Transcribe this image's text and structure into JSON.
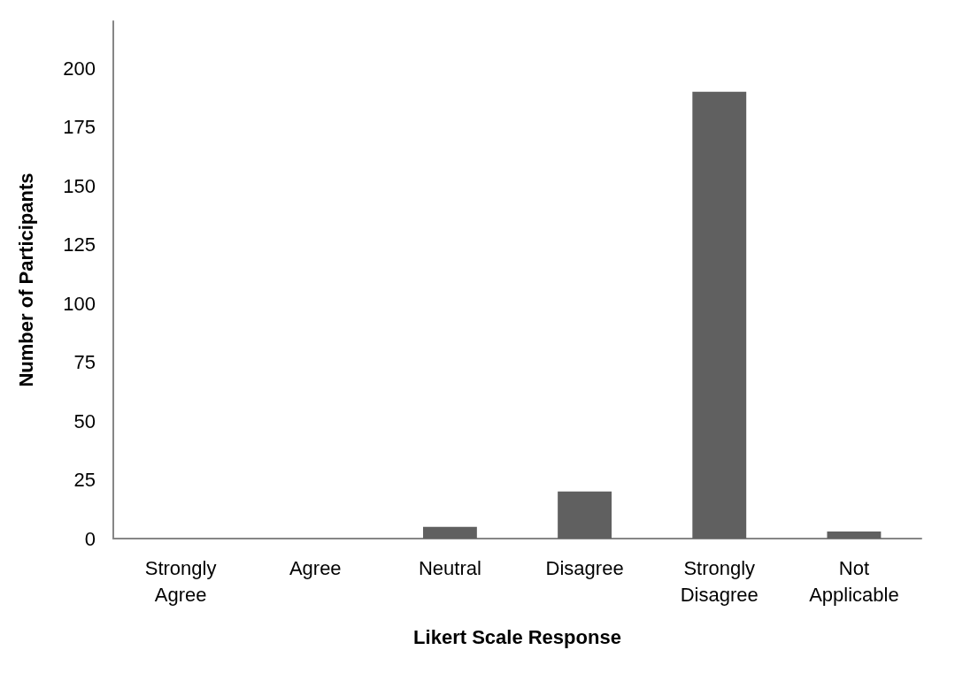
{
  "chart_data": {
    "type": "bar",
    "xlabel": "Likert Scale Response",
    "ylabel": "Number of Participants",
    "categories": [
      "Strongly\nAgree",
      "Agree",
      "Neutral",
      "Disagree",
      "Strongly\nDisagree",
      "Not\nApplicable"
    ],
    "values": [
      0,
      0,
      5,
      20,
      190,
      3
    ],
    "color": "#606060",
    "ylim": [
      0,
      220
    ],
    "yticks": [
      0,
      25,
      50,
      75,
      100,
      125,
      150,
      175,
      200
    ],
    "grid": false
  }
}
